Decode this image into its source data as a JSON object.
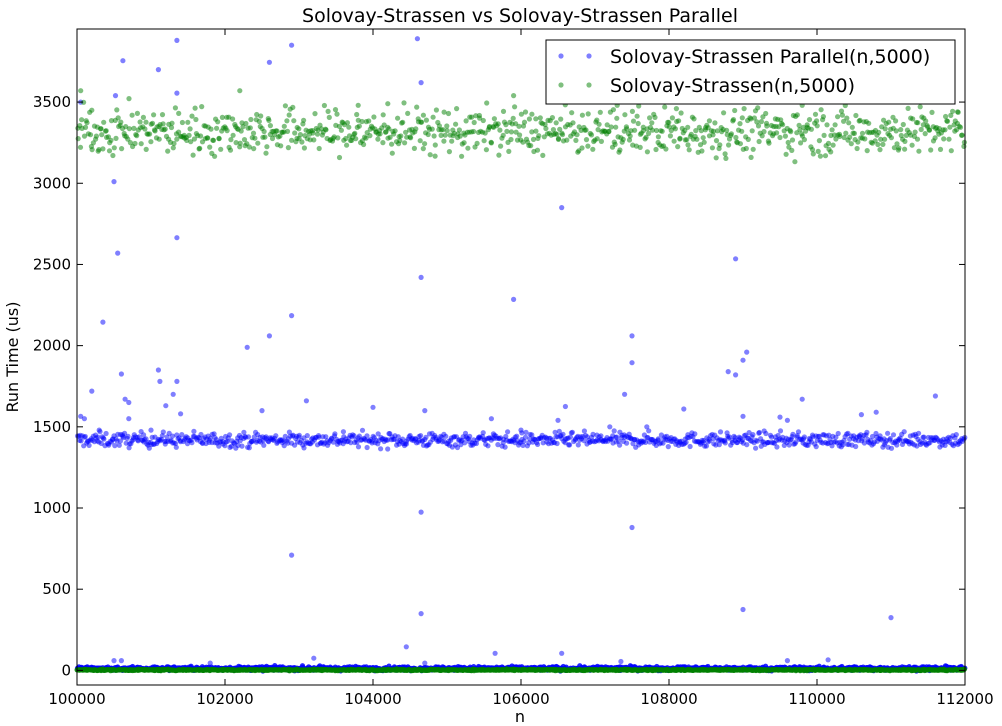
{
  "chart_data": {
    "type": "scatter",
    "title": "Solovay-Strassen vs Solovay-Strassen Parallel",
    "xlabel": "n",
    "ylabel": "Run Time (us)",
    "xlim": [
      100000,
      112000
    ],
    "ylim": [
      -90,
      3950
    ],
    "x_ticks": [
      100000,
      102000,
      104000,
      106000,
      108000,
      110000,
      112000
    ],
    "y_ticks": [
      0,
      500,
      1000,
      1500,
      2000,
      2500,
      3000,
      3500
    ],
    "legend_position": "top-right",
    "grid": false,
    "series": [
      {
        "name": "Solovay-Strassen Parallel(n,5000)",
        "color": "#0000ff",
        "bands": [
          {
            "mean": 1420,
            "spread": 22,
            "count": 900
          },
          {
            "mean": 12,
            "spread": 6,
            "count": 1200
          }
        ],
        "outliers": [
          [
            100050,
            1565
          ],
          [
            100100,
            1550
          ],
          [
            100200,
            1720
          ],
          [
            100300,
            1480
          ],
          [
            100350,
            2145
          ],
          [
            100500,
            3010
          ],
          [
            100520,
            3540
          ],
          [
            100550,
            2570
          ],
          [
            100600,
            1825
          ],
          [
            100620,
            3755
          ],
          [
            100650,
            1670
          ],
          [
            100700,
            1650
          ],
          [
            100700,
            1550
          ],
          [
            100900,
            1450
          ],
          [
            101000,
            1480
          ],
          [
            101100,
            3700
          ],
          [
            101100,
            1850
          ],
          [
            101120,
            1780
          ],
          [
            101200,
            1630
          ],
          [
            101300,
            1700
          ],
          [
            101350,
            3880
          ],
          [
            101350,
            3555
          ],
          [
            101350,
            2665
          ],
          [
            101350,
            1780
          ],
          [
            101400,
            1580
          ],
          [
            102300,
            1990
          ],
          [
            102500,
            1600
          ],
          [
            102600,
            3745
          ],
          [
            102600,
            2060
          ],
          [
            102900,
            3850
          ],
          [
            102900,
            2185
          ],
          [
            102900,
            710
          ],
          [
            103100,
            1660
          ],
          [
            103600,
            1470
          ],
          [
            104000,
            1620
          ],
          [
            104600,
            3890
          ],
          [
            104650,
            3620
          ],
          [
            104650,
            2420
          ],
          [
            104650,
            975
          ],
          [
            104650,
            350
          ],
          [
            104450,
            145
          ],
          [
            104700,
            1600
          ],
          [
            105600,
            1550
          ],
          [
            105900,
            2285
          ],
          [
            106000,
            1480
          ],
          [
            106500,
            1540
          ],
          [
            106600,
            1625
          ],
          [
            106550,
            2850
          ],
          [
            107200,
            1500
          ],
          [
            107400,
            1700
          ],
          [
            107500,
            2060
          ],
          [
            107500,
            1895
          ],
          [
            107500,
            880
          ],
          [
            107700,
            1500
          ],
          [
            108200,
            1610
          ],
          [
            108800,
            1840
          ],
          [
            108900,
            2535
          ],
          [
            108900,
            1820
          ],
          [
            109000,
            1910
          ],
          [
            109050,
            1960
          ],
          [
            109000,
            1565
          ],
          [
            109000,
            375
          ],
          [
            109500,
            1560
          ],
          [
            109600,
            1540
          ],
          [
            109800,
            1670
          ],
          [
            110600,
            1575
          ],
          [
            110800,
            1590
          ],
          [
            111000,
            325
          ],
          [
            111600,
            1690
          ],
          [
            100050,
            3500
          ],
          [
            105650,
            105
          ],
          [
            106550,
            105
          ],
          [
            104700,
            45
          ],
          [
            101800,
            45
          ],
          [
            103200,
            75
          ],
          [
            110150,
            65
          ],
          [
            109600,
            60
          ],
          [
            100600,
            60
          ],
          [
            100500,
            60
          ],
          [
            107350,
            55
          ]
        ]
      },
      {
        "name": "Solovay-Strassen(n,5000)",
        "color": "#008000",
        "bands": [
          {
            "mean": 3320,
            "spread": 70,
            "count": 900
          },
          {
            "mean": 3,
            "spread": 2,
            "count": 1200
          }
        ],
        "outliers": [
          [
            100050,
            3570
          ],
          [
            102200,
            3570
          ],
          [
            105900,
            3540
          ],
          [
            107300,
            3480
          ],
          [
            104200,
            3490
          ],
          [
            103800,
            3480
          ],
          [
            108100,
            3460
          ],
          [
            109800,
            3480
          ],
          [
            100200,
            3450
          ],
          [
            111900,
            3440
          ]
        ]
      }
    ]
  }
}
